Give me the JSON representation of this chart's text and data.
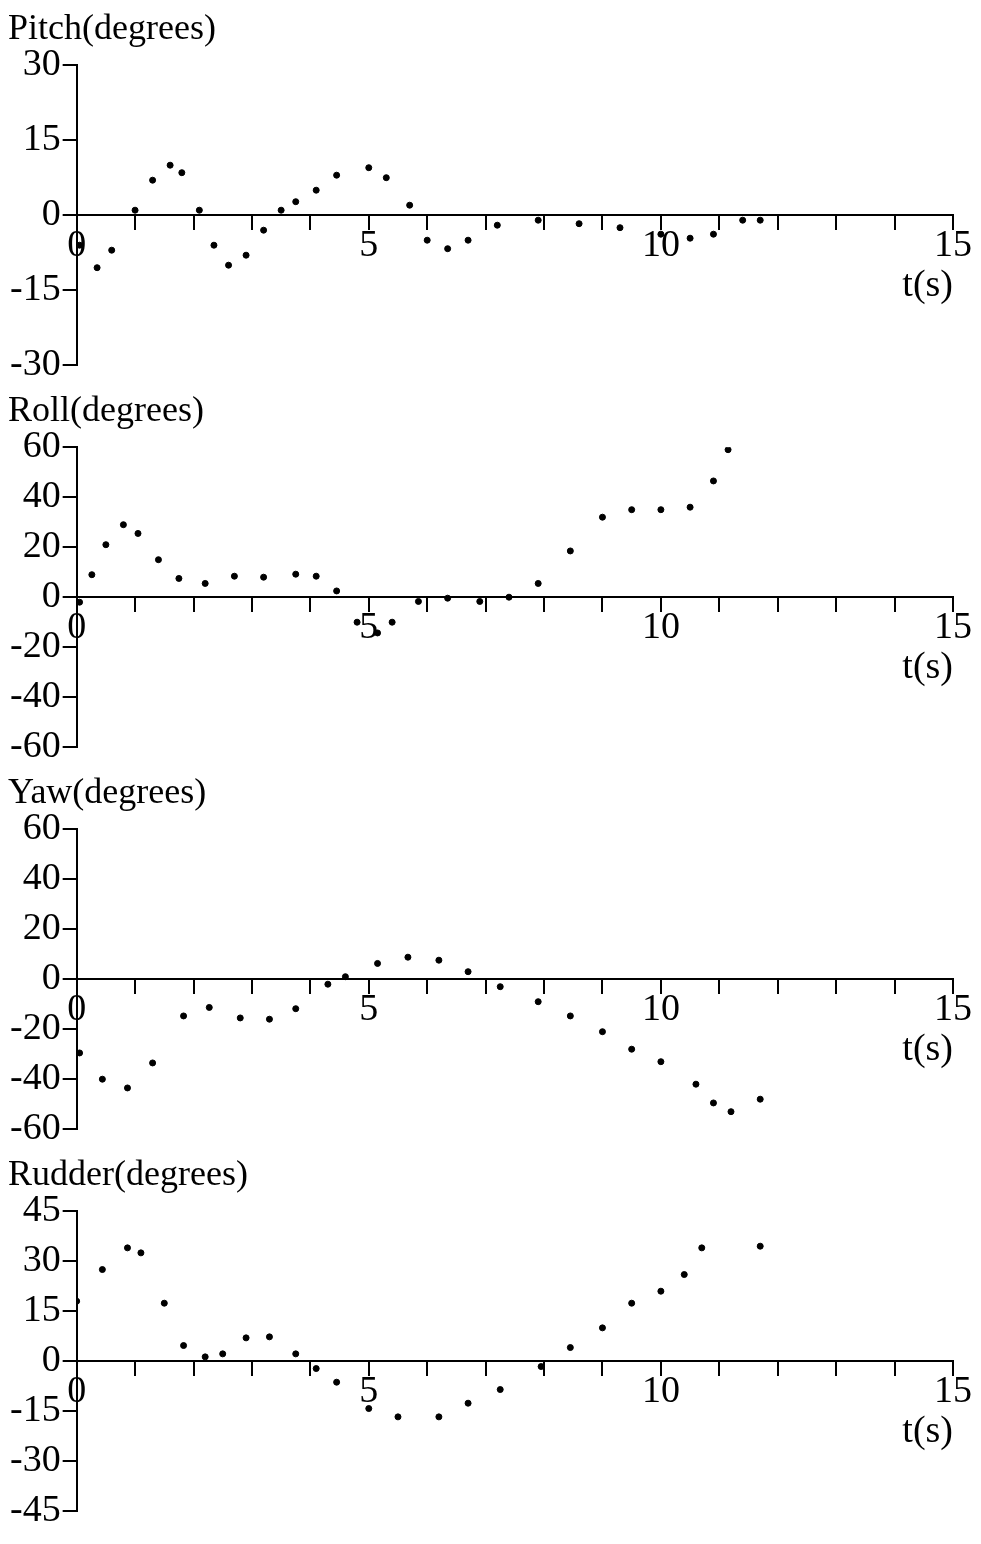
{
  "chart_data": [
    {
      "type": "scatter",
      "title": "Pitch(degrees)",
      "xlabel": "t(s)",
      "color": "#000000",
      "marker": "circle",
      "xlim": [
        0,
        15
      ],
      "xticks": [
        0,
        {
          "value": 1,
          "label": null
        },
        {
          "value": 2,
          "label": null
        },
        {
          "value": 3,
          "label": null
        },
        {
          "value": 4,
          "label": null
        },
        5,
        {
          "value": 6,
          "label": null
        },
        {
          "value": 7,
          "label": null
        },
        {
          "value": 8,
          "label": null
        },
        {
          "value": 9,
          "label": null
        },
        10,
        {
          "value": 11,
          "label": null
        },
        {
          "value": 12,
          "label": null
        },
        {
          "value": 13,
          "label": null
        },
        {
          "value": 14,
          "label": null
        },
        15
      ],
      "ylim": [
        -30,
        30
      ],
      "yticks": [
        -30,
        -15,
        0,
        15,
        30
      ],
      "x": [
        0.05,
        0.35,
        0.6,
        1,
        1.3,
        1.6,
        1.8,
        2.1,
        2.35,
        2.6,
        2.9,
        3.2,
        3.5,
        3.75,
        4.1,
        4.45,
        5,
        5.3,
        5.7,
        6,
        6.35,
        6.7,
        7.2,
        7.9,
        8.6,
        9.3,
        10,
        10.5,
        10.9,
        11.4,
        11.7
      ],
      "values": [
        -6,
        -10.5,
        -7,
        1,
        7,
        10,
        8.5,
        1,
        -6,
        -10,
        -8,
        -3,
        1,
        2.7,
        5,
        8,
        9.5,
        7.5,
        2,
        -5,
        -6.7,
        -5,
        -2,
        -1,
        -1.7,
        -2.5,
        -3.8,
        -4.6,
        -3.8,
        -1,
        -1
      ]
    },
    {
      "type": "scatter",
      "title": "Roll(degrees)",
      "xlabel": "t(s)",
      "color": "#000000",
      "marker": "circle",
      "xlim": [
        0,
        15
      ],
      "xticks": [
        0,
        {
          "value": 1,
          "label": null
        },
        {
          "value": 2,
          "label": null
        },
        {
          "value": 3,
          "label": null
        },
        {
          "value": 4,
          "label": null
        },
        5,
        {
          "value": 6,
          "label": null
        },
        {
          "value": 7,
          "label": null
        },
        {
          "value": 8,
          "label": null
        },
        {
          "value": 9,
          "label": null
        },
        10,
        {
          "value": 11,
          "label": null
        },
        {
          "value": 12,
          "label": null
        },
        {
          "value": 13,
          "label": null
        },
        {
          "value": 14,
          "label": null
        },
        15
      ],
      "ylim": [
        -60,
        60
      ],
      "yticks": [
        -60,
        -40,
        -20,
        0,
        20,
        40,
        60
      ],
      "x": [
        0.05,
        0.26,
        0.5,
        0.8,
        1.05,
        1.4,
        1.75,
        2.2,
        2.7,
        3.2,
        3.75,
        4.1,
        4.45,
        4.8,
        5.15,
        5.4,
        5.85,
        6.35,
        6.9,
        7.4,
        7.9,
        8.45,
        9,
        9.5,
        10,
        10.5,
        10.9,
        11.15
      ],
      "values": [
        -2,
        9,
        21,
        29,
        25.5,
        15,
        7.5,
        5.5,
        8.4,
        8,
        9.2,
        8.4,
        2.5,
        -10,
        -14.3,
        -10,
        -1.7,
        -0.4,
        -1.7,
        0,
        5.5,
        18.5,
        32,
        35,
        35,
        36,
        46.5,
        59
      ]
    },
    {
      "type": "scatter",
      "title": "Yaw(degrees)",
      "xlabel": "t(s)",
      "color": "#000000",
      "marker": "circle",
      "xlim": [
        0,
        15
      ],
      "xticks": [
        0,
        {
          "value": 1,
          "label": null
        },
        {
          "value": 2,
          "label": null
        },
        {
          "value": 3,
          "label": null
        },
        {
          "value": 4,
          "label": null
        },
        5,
        {
          "value": 6,
          "label": null
        },
        {
          "value": 7,
          "label": null
        },
        {
          "value": 8,
          "label": null
        },
        {
          "value": 9,
          "label": null
        },
        10,
        {
          "value": 11,
          "label": null
        },
        {
          "value": 12,
          "label": null
        },
        {
          "value": 13,
          "label": null
        },
        {
          "value": 14,
          "label": null
        },
        15
      ],
      "ylim": [
        -60,
        60
      ],
      "yticks": [
        -60,
        -40,
        -20,
        0,
        20,
        40,
        60
      ],
      "x": [
        0.05,
        0.44,
        0.87,
        1.3,
        1.83,
        2.27,
        2.8,
        3.3,
        3.75,
        4.3,
        4.6,
        5.15,
        5.67,
        6.2,
        6.7,
        7.25,
        7.9,
        8.45,
        9,
        9.5,
        10,
        10.6,
        10.9,
        11.2,
        11.7
      ],
      "values": [
        -29.5,
        -40,
        -43.5,
        -33.5,
        -14.7,
        -11.3,
        -15.5,
        -16,
        -11.8,
        -2,
        1,
        6.3,
        8.8,
        7.6,
        3,
        -3,
        -9,
        -14.7,
        -21,
        -28,
        -33,
        -42,
        -49.5,
        -53,
        -48
      ]
    },
    {
      "type": "scatter",
      "title": "Rudder(degrees)",
      "xlabel": "t(s)",
      "color": "#000000",
      "marker": "circle",
      "xlim": [
        0,
        15
      ],
      "xticks": [
        0,
        {
          "value": 1,
          "label": null
        },
        {
          "value": 2,
          "label": null
        },
        {
          "value": 3,
          "label": null
        },
        {
          "value": 4,
          "label": null
        },
        5,
        {
          "value": 6,
          "label": null
        },
        {
          "value": 7,
          "label": null
        },
        {
          "value": 8,
          "label": null
        },
        {
          "value": 9,
          "label": null
        },
        10,
        {
          "value": 11,
          "label": null
        },
        {
          "value": 12,
          "label": null
        },
        {
          "value": 13,
          "label": null
        },
        {
          "value": 14,
          "label": null
        },
        15
      ],
      "ylim": [
        -45,
        45
      ],
      "yticks": [
        -45,
        -30,
        -15,
        0,
        15,
        30,
        45
      ],
      "x": [
        0,
        0.44,
        0.87,
        1.1,
        1.5,
        1.83,
        2.2,
        2.5,
        2.9,
        3.3,
        3.75,
        4.1,
        4.45,
        5,
        5.5,
        6.2,
        6.7,
        7.25,
        7.95,
        8.45,
        9,
        9.5,
        10,
        10.4,
        10.7,
        11.7
      ],
      "values": [
        18,
        27.5,
        34,
        32.5,
        17.4,
        4.7,
        1.3,
        2.2,
        7,
        7.3,
        2.2,
        -2.2,
        -6.3,
        -14.2,
        -16.7,
        -16.7,
        -12.6,
        -8.5,
        -1.6,
        4.1,
        10,
        17.4,
        21,
        26,
        34,
        34.5
      ]
    }
  ]
}
